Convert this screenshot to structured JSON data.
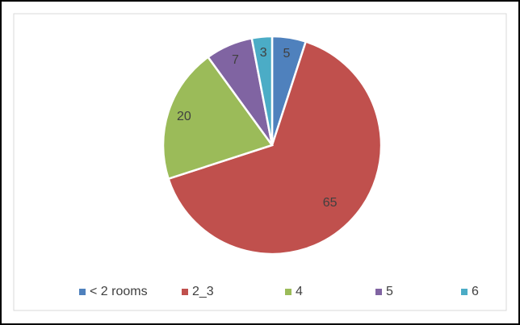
{
  "chart_data": {
    "type": "pie",
    "categories": [
      "< 2 rooms",
      "2_3",
      "4",
      "5",
      "6"
    ],
    "values": [
      5,
      65,
      20,
      7,
      3
    ],
    "colors": [
      "#4f81bd",
      "#c0504d",
      "#9bbb59",
      "#8064a2",
      "#4bacc6"
    ],
    "legend": "bottom"
  }
}
